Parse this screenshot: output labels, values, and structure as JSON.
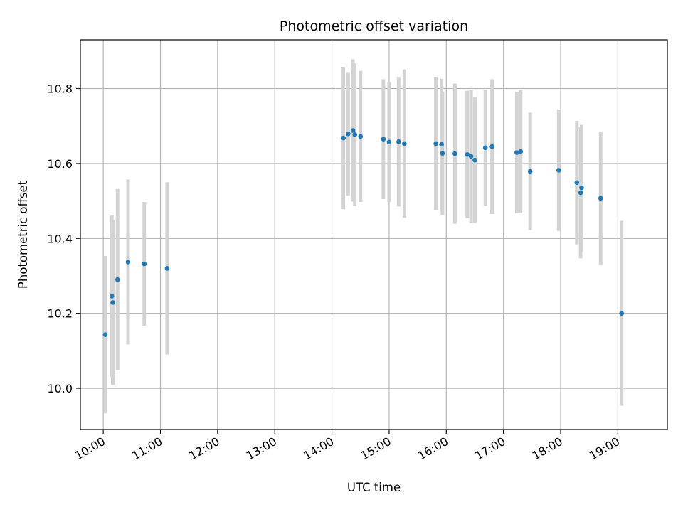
{
  "chart_data": {
    "type": "scatter",
    "title": "Photometric offset variation",
    "xlabel": "UTC time",
    "ylabel": "Photometric offset",
    "x_ticks": [
      "10:00",
      "11:00",
      "12:00",
      "13:00",
      "14:00",
      "15:00",
      "16:00",
      "17:00",
      "18:00",
      "19:00"
    ],
    "y_ticks": [
      "10.0",
      "10.2",
      "10.4",
      "10.6",
      "10.8"
    ],
    "xlim": [
      "09:36",
      "19:52"
    ],
    "ylim": [
      9.89,
      10.93
    ],
    "grid": true,
    "colors": {
      "points": "#1f77b4",
      "errorbars": "#d3d3d3",
      "grid": "#b0b0b0"
    },
    "points": [
      {
        "x": "10:02",
        "y": 10.143,
        "err": 0.21
      },
      {
        "x": "10:09",
        "y": 10.246,
        "err": 0.215
      },
      {
        "x": "10:10",
        "y": 10.229,
        "err": 0.22
      },
      {
        "x": "10:15",
        "y": 10.29,
        "err": 0.242
      },
      {
        "x": "10:26",
        "y": 10.337,
        "err": 0.22
      },
      {
        "x": "10:43",
        "y": 10.332,
        "err": 0.165
      },
      {
        "x": "11:07",
        "y": 10.32,
        "err": 0.23
      },
      {
        "x": "14:12",
        "y": 10.668,
        "err": 0.19
      },
      {
        "x": "14:17",
        "y": 10.679,
        "err": 0.165
      },
      {
        "x": "14:22",
        "y": 10.688,
        "err": 0.19
      },
      {
        "x": "14:24",
        "y": 10.677,
        "err": 0.19
      },
      {
        "x": "14:30",
        "y": 10.672,
        "err": 0.175
      },
      {
        "x": "14:54",
        "y": 10.665,
        "err": 0.16
      },
      {
        "x": "15:00",
        "y": 10.657,
        "err": 0.16
      },
      {
        "x": "15:10",
        "y": 10.658,
        "err": 0.173
      },
      {
        "x": "15:16",
        "y": 10.653,
        "err": 0.198
      },
      {
        "x": "15:49",
        "y": 10.653,
        "err": 0.178
      },
      {
        "x": "15:55",
        "y": 10.651,
        "err": 0.175
      },
      {
        "x": "15:56",
        "y": 10.627,
        "err": 0.165
      },
      {
        "x": "16:09",
        "y": 10.626,
        "err": 0.187
      },
      {
        "x": "16:22",
        "y": 10.624,
        "err": 0.17
      },
      {
        "x": "16:26",
        "y": 10.619,
        "err": 0.178
      },
      {
        "x": "16:30",
        "y": 10.609,
        "err": 0.168
      },
      {
        "x": "16:41",
        "y": 10.642,
        "err": 0.155
      },
      {
        "x": "16:48",
        "y": 10.645,
        "err": 0.18
      },
      {
        "x": "17:14",
        "y": 10.629,
        "err": 0.162
      },
      {
        "x": "17:18",
        "y": 10.632,
        "err": 0.165
      },
      {
        "x": "17:28",
        "y": 10.579,
        "err": 0.157
      },
      {
        "x": "17:58",
        "y": 10.582,
        "err": 0.162
      },
      {
        "x": "18:17",
        "y": 10.549,
        "err": 0.165
      },
      {
        "x": "18:21",
        "y": 10.522,
        "err": 0.175
      },
      {
        "x": "18:22",
        "y": 10.535,
        "err": 0.168
      },
      {
        "x": "18:42",
        "y": 10.507,
        "err": 0.178
      },
      {
        "x": "19:04",
        "y": 10.2,
        "err": 0.247
      }
    ]
  }
}
